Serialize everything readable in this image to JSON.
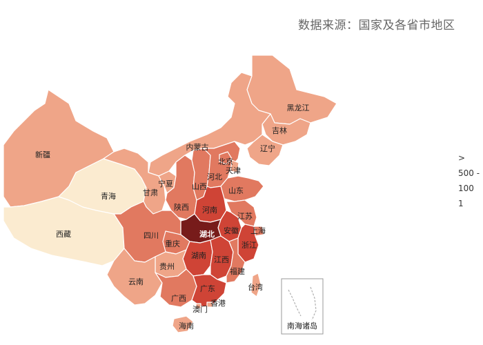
{
  "source": "数据来源：国家及各省市地区",
  "legend": [
    ">",
    "500 -",
    "100",
    "1"
  ],
  "colors": {
    "level_low": "#fbebd0",
    "level_1": "#efa588",
    "level_2": "#e17960",
    "level_3": "#cf4436",
    "level_max": "#771b1a",
    "inset_border": "#999999"
  },
  "provinces": [
    {
      "name": "黑龙江",
      "level": 1
    },
    {
      "name": "吉林",
      "level": 1
    },
    {
      "name": "辽宁",
      "level": 1
    },
    {
      "name": "内蒙古",
      "level": 1
    },
    {
      "name": "新疆",
      "level": 1
    },
    {
      "name": "西藏",
      "level": 0
    },
    {
      "name": "青海",
      "level": 0
    },
    {
      "name": "甘肃",
      "level": 1
    },
    {
      "name": "宁夏",
      "level": 1
    },
    {
      "name": "陕西",
      "level": 2
    },
    {
      "name": "山西",
      "level": 2
    },
    {
      "name": "河北",
      "level": 2
    },
    {
      "name": "北京",
      "level": 2
    },
    {
      "name": "天津",
      "level": 1
    },
    {
      "name": "山东",
      "level": 2
    },
    {
      "name": "河南",
      "level": 3
    },
    {
      "name": "江苏",
      "level": 2
    },
    {
      "name": "安徽",
      "level": 3
    },
    {
      "name": "上海",
      "level": 2
    },
    {
      "name": "浙江",
      "level": 3
    },
    {
      "name": "湖北",
      "level": 4
    },
    {
      "name": "四川",
      "level": 2
    },
    {
      "name": "重庆",
      "level": 2
    },
    {
      "name": "湖南",
      "level": 3
    },
    {
      "name": "江西",
      "level": 3
    },
    {
      "name": "福建",
      "level": 2
    },
    {
      "name": "贵州",
      "level": 1
    },
    {
      "name": "云南",
      "level": 1
    },
    {
      "name": "广西",
      "level": 2
    },
    {
      "name": "广东",
      "level": 3
    },
    {
      "name": "澳门",
      "level": 1
    },
    {
      "name": "香港",
      "level": 1
    },
    {
      "name": "台湾",
      "level": 1
    },
    {
      "name": "海南",
      "level": 1
    },
    {
      "name": "南海诸岛",
      "level": 1
    }
  ]
}
